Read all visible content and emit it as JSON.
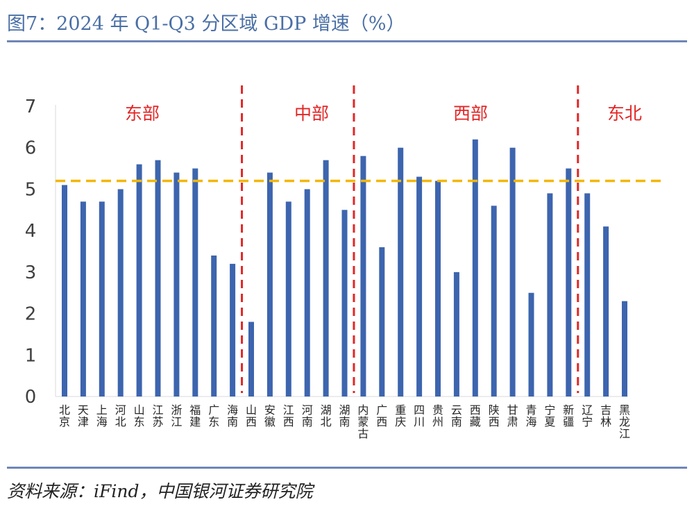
{
  "figure": {
    "title": "图7：2024 年 Q1-Q3 分区域 GDP 增速（%）",
    "source": "资料来源：iFind，中国银河证券研究院"
  },
  "colors": {
    "bar": "#3d65ae",
    "reference_line": "#f2b705",
    "divider": "#e32626",
    "region_label": "#e32626",
    "axis_text": "#404040",
    "title": "#4a6fa5"
  },
  "chart_data": {
    "type": "bar",
    "categories": [
      "北京",
      "天津",
      "上海",
      "河北",
      "山东",
      "江苏",
      "浙江",
      "福建",
      "广东",
      "海南",
      "山西",
      "安徽",
      "江西",
      "河南",
      "湖北",
      "湖南",
      "内蒙古",
      "广西",
      "重庆",
      "四川",
      "贵州",
      "云南",
      "西藏",
      "陕西",
      "甘肃",
      "青海",
      "宁夏",
      "新疆",
      "辽宁",
      "吉林",
      "黑龙江"
    ],
    "values": [
      5.1,
      4.7,
      4.7,
      5.0,
      5.6,
      5.7,
      5.4,
      5.5,
      3.4,
      3.2,
      1.8,
      5.4,
      4.7,
      5.0,
      5.7,
      4.5,
      5.8,
      3.6,
      6.0,
      5.3,
      5.2,
      3.0,
      6.2,
      4.6,
      6.0,
      2.5,
      4.9,
      5.5,
      4.9,
      4.1,
      2.3
    ],
    "ylim": [
      0,
      7
    ],
    "yticks": [
      0,
      1,
      2,
      3,
      4,
      5,
      6,
      7
    ],
    "reference_line": 5.2,
    "regions": [
      {
        "label": "东部",
        "start": 0,
        "end": 9
      },
      {
        "label": "中部",
        "start": 10,
        "end": 15
      },
      {
        "label": "西部",
        "start": 16,
        "end": 27
      },
      {
        "label": "东北",
        "start": 28,
        "end": 30
      }
    ],
    "grid": false,
    "legend": "none"
  }
}
